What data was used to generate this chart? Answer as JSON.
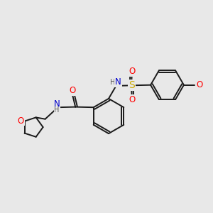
{
  "background_color": "#e8e8e8",
  "bond_color": "#1a1a1a",
  "bond_width": 1.4,
  "atom_colors": {
    "O": "#ff0000",
    "N": "#0000cc",
    "S": "#ccaa00",
    "C": "#1a1a1a",
    "H": "#555555"
  },
  "font_size_atom": 8.5,
  "font_size_small": 7.0,
  "xlim": [
    0,
    10
  ],
  "ylim": [
    0,
    10
  ]
}
